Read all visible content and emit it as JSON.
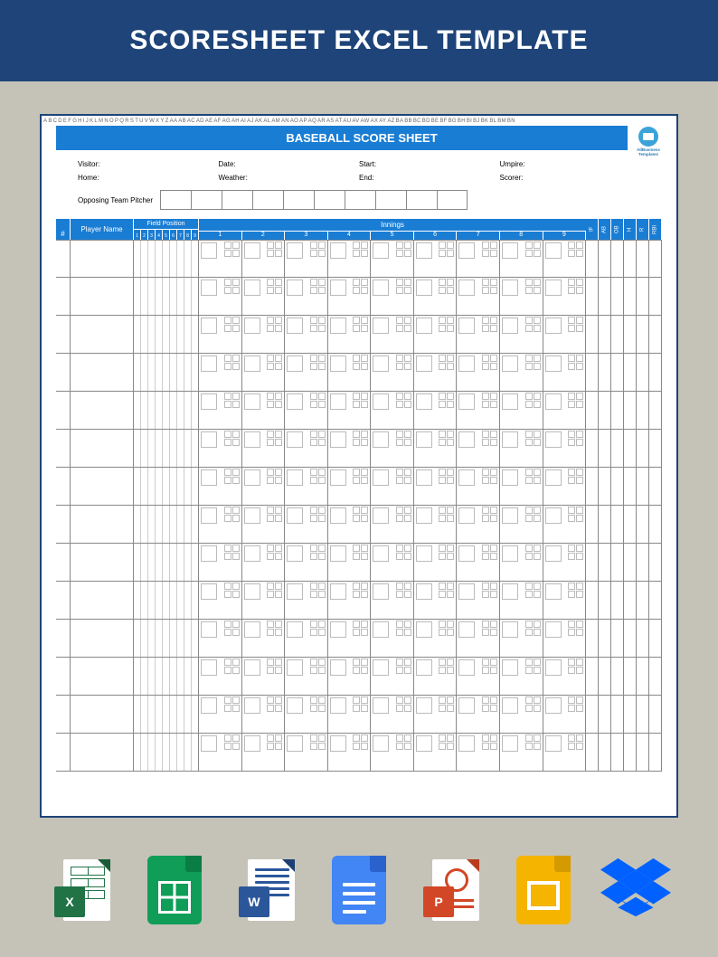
{
  "colors": {
    "header_bg": "#1e4479",
    "page_bg": "#c5c3b7",
    "sheet_border": "#1e4479",
    "table_header_bg": "#1a7dd4",
    "cell_border": "#888",
    "excel": "#217346",
    "excel_dark": "#185c37",
    "word": "#2b579a",
    "word_dark": "#1e3f73",
    "ppt": "#d24726",
    "ppt_dark": "#b73c1f",
    "gsheets": "#0f9d58",
    "gdocs": "#4285f4",
    "gslides": "#f4b400",
    "dropbox": "#0061ff"
  },
  "header": {
    "title": "SCORESHEET EXCEL TEMPLATE"
  },
  "sheet": {
    "col_letters": [
      "A",
      "B",
      "C",
      "D",
      "E",
      "F",
      "G",
      "H",
      "I",
      "J",
      "K",
      "L",
      "M",
      "N",
      "O",
      "P",
      "Q",
      "R",
      "S",
      "T",
      "U",
      "V",
      "W",
      "X",
      "Y",
      "Z",
      "AA",
      "AB",
      "AC",
      "AD",
      "AE",
      "AF",
      "AG",
      "AH",
      "AI",
      "AJ",
      "AK",
      "AL",
      "AM",
      "AN",
      "AO",
      "AP",
      "AQ",
      "AR",
      "AS",
      "AT",
      "AU",
      "AV",
      "AW",
      "AX",
      "AY",
      "AZ",
      "BA",
      "BB",
      "BC",
      "BD",
      "BE",
      "BF",
      "BG",
      "BH",
      "BI",
      "BJ",
      "BK",
      "BL",
      "BM",
      "BN"
    ],
    "title": "BASEBALL SCORE SHEET",
    "brand": "AllBusiness Templates",
    "info": {
      "row1": {
        "visitor": "Visitor:",
        "date": "Date:",
        "start": "Start:",
        "umpire": "Umpire:"
      },
      "row2": {
        "home": "Home:",
        "weather": "Weather:",
        "end": "End:",
        "scorer": "Scorer:"
      }
    },
    "pitcher": {
      "label": "Opposing Team Pitcher",
      "boxes": 10
    },
    "table": {
      "num_header": "#",
      "name_header": "Player Name",
      "field_pos_header": "Field Position",
      "field_pos_nums": [
        "1",
        "2",
        "3",
        "4",
        "5",
        "6",
        "7",
        "8",
        "9"
      ],
      "innings_header": "Innings",
      "innings_nums": [
        "1",
        "2",
        "3",
        "4",
        "5",
        "6",
        "7",
        "8",
        "9"
      ],
      "stats": [
        "IF",
        "AB",
        "OB",
        "H",
        "R",
        "RBI"
      ],
      "rows": 14
    }
  },
  "icons": [
    "excel",
    "gsheets",
    "word",
    "gdocs",
    "ppt",
    "gslides",
    "dropbox"
  ]
}
